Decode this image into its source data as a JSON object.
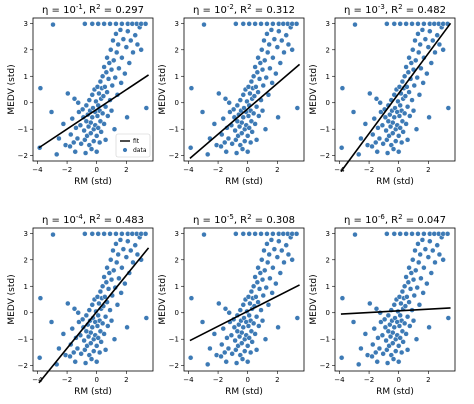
{
  "chart_data": {
    "type": "scatter",
    "grid": false,
    "xlabel": "RM (std)",
    "ylabel": "MEDV (std)",
    "xlim": [
      -4.3,
      3.8
    ],
    "ylim": [
      -2.2,
      3.2
    ],
    "xticks": [
      -4,
      -2,
      0,
      2
    ],
    "yticks": [
      -2,
      -1,
      0,
      1,
      2,
      3
    ],
    "colors": {
      "points": "#3d7ab5",
      "fit": "#000000"
    },
    "legend": {
      "placement": "bottom-right",
      "panel": 0,
      "entries": [
        "fit",
        "data"
      ]
    },
    "points": [
      [
        -3.85,
        -1.7
      ],
      [
        -3.8,
        0.55
      ],
      [
        -3.05,
        -0.35
      ],
      [
        -2.95,
        2.95
      ],
      [
        -2.55,
        -1.35
      ],
      [
        -2.7,
        -1.95
      ],
      [
        -2.1,
        -1.6
      ],
      [
        -1.95,
        0.35
      ],
      [
        -2.25,
        -0.8
      ],
      [
        -1.75,
        -1.2
      ],
      [
        -1.8,
        -1.65
      ],
      [
        -1.55,
        -1.5
      ],
      [
        -1.65,
        -0.6
      ],
      [
        -1.4,
        -0.95
      ],
      [
        -1.3,
        -1.35
      ],
      [
        -1.45,
        -1.85
      ],
      [
        -1.5,
        0.15
      ],
      [
        -1.2,
        -0.35
      ],
      [
        -1.1,
        -0.85
      ],
      [
        -1.05,
        -1.55
      ],
      [
        -1.25,
        0.0
      ],
      [
        -0.95,
        -0.25
      ],
      [
        -0.9,
        -0.55
      ],
      [
        -0.85,
        -1.05
      ],
      [
        -0.8,
        -1.4
      ],
      [
        -0.75,
        -1.9
      ],
      [
        -0.7,
        -0.1
      ],
      [
        -0.7,
        -0.7
      ],
      [
        -0.65,
        -1.25
      ],
      [
        -0.6,
        -0.45
      ],
      [
        -0.55,
        -0.9
      ],
      [
        -0.5,
        -1.6
      ],
      [
        -0.5,
        0.1
      ],
      [
        -0.45,
        -0.3
      ],
      [
        -0.4,
        -0.75
      ],
      [
        -0.4,
        -1.15
      ],
      [
        -0.35,
        -1.75
      ],
      [
        -0.3,
        0.3
      ],
      [
        -0.3,
        -0.55
      ],
      [
        -0.25,
        -0.2
      ],
      [
        -0.2,
        -1.0
      ],
      [
        -0.2,
        -1.45
      ],
      [
        -0.15,
        0.5
      ],
      [
        -0.1,
        -0.35
      ],
      [
        -0.1,
        -0.85
      ],
      [
        -0.05,
        0.05
      ],
      [
        0.0,
        -1.25
      ],
      [
        0.0,
        -1.85
      ],
      [
        0.05,
        0.6
      ],
      [
        0.05,
        -0.5
      ],
      [
        0.1,
        -0.1
      ],
      [
        0.1,
        -0.95
      ],
      [
        0.15,
        0.35
      ],
      [
        0.2,
        -0.3
      ],
      [
        0.2,
        -1.5
      ],
      [
        0.25,
        0.8
      ],
      [
        0.25,
        -0.7
      ],
      [
        0.3,
        0.15
      ],
      [
        0.3,
        -1.1
      ],
      [
        0.35,
        0.55
      ],
      [
        0.4,
        -0.4
      ],
      [
        0.4,
        1.0
      ],
      [
        0.45,
        0.25
      ],
      [
        0.5,
        -0.8
      ],
      [
        0.5,
        1.35
      ],
      [
        0.55,
        0.6
      ],
      [
        0.6,
        -0.15
      ],
      [
        0.6,
        -1.4
      ],
      [
        0.65,
        1.15
      ],
      [
        0.7,
        0.4
      ],
      [
        0.7,
        1.7
      ],
      [
        0.75,
        -0.5
      ],
      [
        0.8,
        0.9
      ],
      [
        0.85,
        1.5
      ],
      [
        0.9,
        0.1
      ],
      [
        0.95,
        2.0
      ],
      [
        1.0,
        1.25
      ],
      [
        1.0,
        -0.3
      ],
      [
        1.05,
        0.65
      ],
      [
        1.1,
        2.35
      ],
      [
        1.15,
        1.6
      ],
      [
        1.2,
        -1.0
      ],
      [
        1.25,
        0.95
      ],
      [
        1.3,
        2.6
      ],
      [
        1.35,
        1.9
      ],
      [
        1.4,
        0.3
      ],
      [
        1.45,
        2.2
      ],
      [
        1.5,
        1.3
      ],
      [
        1.6,
        2.75
      ],
      [
        1.65,
        0.75
      ],
      [
        1.7,
        1.7
      ],
      [
        1.8,
        2.4
      ],
      [
        1.9,
        1.1
      ],
      [
        2.0,
        2.1
      ],
      [
        2.05,
        -0.55
      ],
      [
        2.1,
        2.7
      ],
      [
        2.2,
        1.5
      ],
      [
        2.3,
        2.35
      ],
      [
        2.45,
        1.9
      ],
      [
        2.6,
        2.55
      ],
      [
        2.75,
        2.2
      ],
      [
        2.9,
        2.85
      ],
      [
        3.0,
        2.0
      ],
      [
        3.35,
        -0.2
      ],
      [
        -0.8,
        2.98
      ],
      [
        -0.3,
        2.98
      ],
      [
        0.1,
        2.98
      ],
      [
        0.5,
        2.98
      ],
      [
        0.9,
        2.98
      ],
      [
        1.3,
        2.98
      ],
      [
        1.7,
        2.98
      ],
      [
        2.1,
        2.98
      ],
      [
        2.4,
        2.98
      ],
      [
        2.7,
        2.98
      ],
      [
        3.0,
        2.98
      ],
      [
        3.3,
        2.98
      ]
    ],
    "panels": [
      {
        "title_exp": "-1",
        "r2": "0.297",
        "fit": [
          [
            -3.9,
            -1.7
          ],
          [
            3.5,
            1.05
          ]
        ]
      },
      {
        "title_exp": "-2",
        "r2": "0.312",
        "fit": [
          [
            -3.9,
            -2.1
          ],
          [
            3.5,
            1.45
          ]
        ]
      },
      {
        "title_exp": "-3",
        "r2": "0.482",
        "fit": [
          [
            -3.9,
            -2.6
          ],
          [
            3.5,
            3.0
          ]
        ]
      },
      {
        "title_exp": "-4",
        "r2": "0.483",
        "fit": [
          [
            -3.9,
            -2.65
          ],
          [
            3.5,
            2.45
          ]
        ]
      },
      {
        "title_exp": "-5",
        "r2": "0.308",
        "fit": [
          [
            -3.9,
            -1.05
          ],
          [
            3.5,
            1.05
          ]
        ]
      },
      {
        "title_exp": "-6",
        "r2": "0.047",
        "fit": [
          [
            -3.9,
            -0.05
          ],
          [
            3.5,
            0.18
          ]
        ]
      }
    ]
  }
}
